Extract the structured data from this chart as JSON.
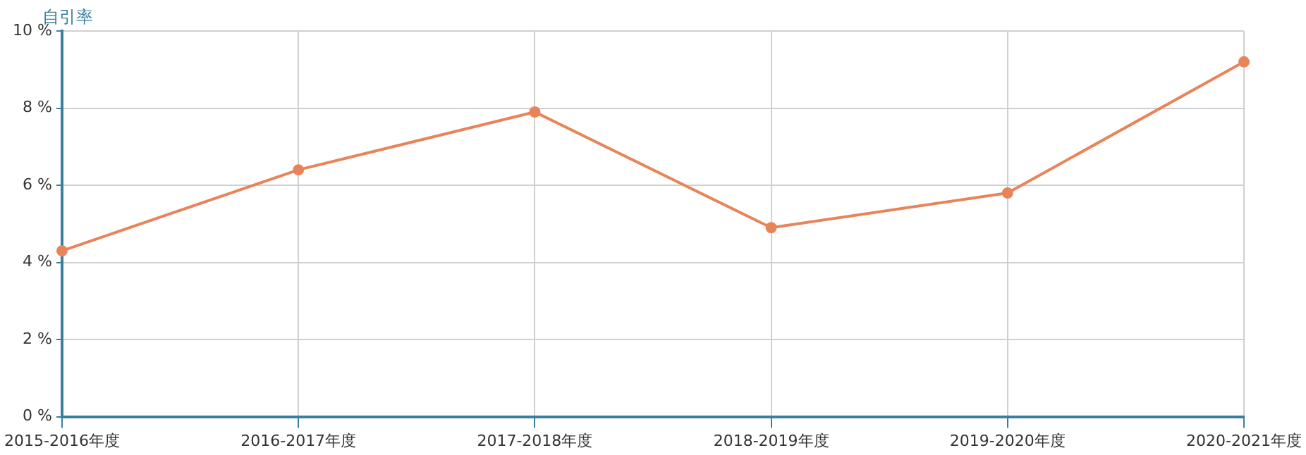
{
  "chart_data": {
    "type": "line",
    "ylabel": "自引率",
    "categories": [
      "2015-2016年度",
      "2016-2017年度",
      "2017-2018年度",
      "2018-2019年度",
      "2019-2020年度",
      "2020-2021年度"
    ],
    "series": [
      {
        "color": "#e8845a",
        "values": [
          4.3,
          6.4,
          7.9,
          4.9,
          5.8,
          9.2
        ]
      }
    ],
    "ylim": [
      0,
      10
    ],
    "yticks": [
      {
        "value": 0,
        "label": "0 %"
      },
      {
        "value": 2,
        "label": "2 %"
      },
      {
        "value": 4,
        "label": "4 %"
      },
      {
        "value": 6,
        "label": "6 %"
      },
      {
        "value": 8,
        "label": "8 %"
      },
      {
        "value": 10,
        "label": "10 %"
      }
    ],
    "grid": true,
    "legend": false,
    "marker": "circle",
    "line_style": "solid"
  }
}
